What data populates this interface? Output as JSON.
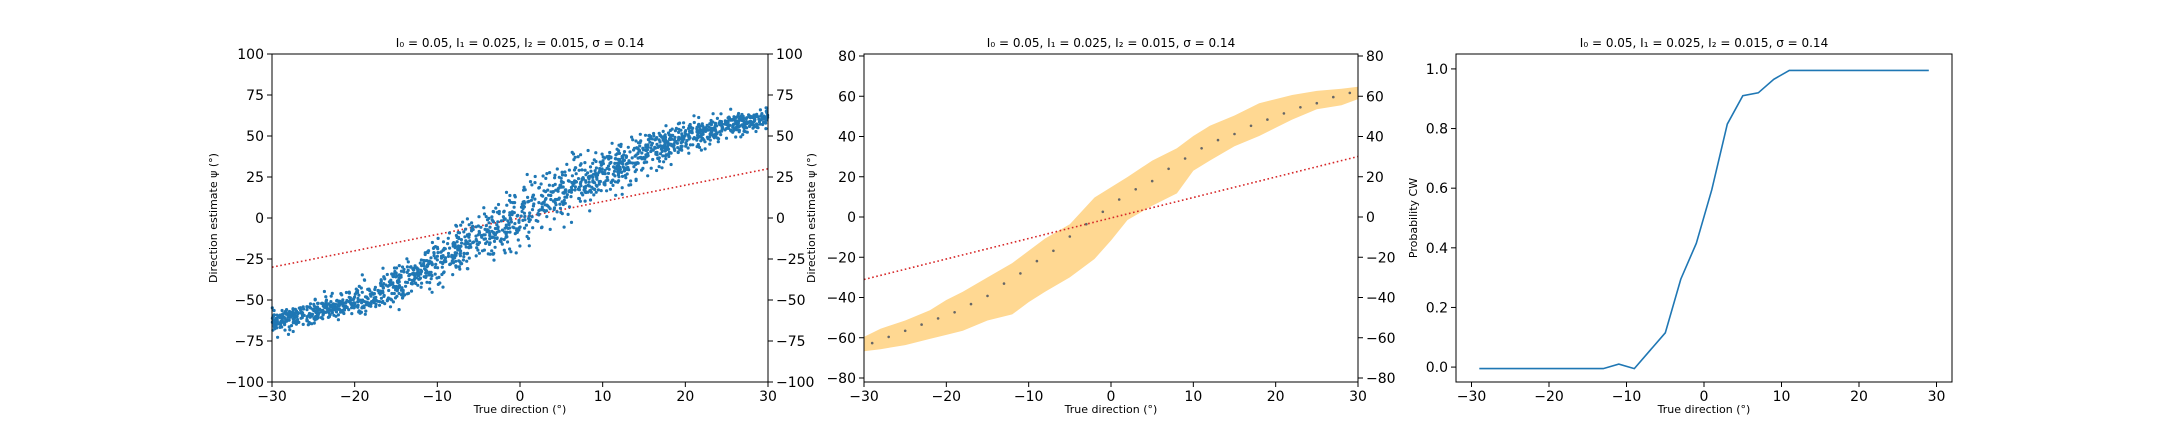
{
  "chart_data": [
    {
      "type": "scatter",
      "title": "I₀ = 0.05, I₁ = 0.025, I₂ = 0.015, σ = 0.14",
      "xlabel": "True direction (°)",
      "ylabel": "Direction estimate ψ (°)",
      "xlim": [
        -30,
        30
      ],
      "ylim": [
        -100,
        100
      ],
      "xticks": [
        "−30",
        "−20",
        "−10",
        "0",
        "10",
        "20",
        "30"
      ],
      "yticks": [
        "−100",
        "−75",
        "−50",
        "−25",
        "0",
        "25",
        "50",
        "75",
        "100"
      ],
      "yticks_right": [
        "−100",
        "−75",
        "−50",
        "−25",
        "0",
        "25",
        "50",
        "75",
        "100"
      ],
      "grid": false,
      "colors": {
        "points": "#1f77b4",
        "reference_line": "#d62728"
      },
      "reference_line": {
        "style": "dotted",
        "points": [
          [
            -30,
            -30
          ],
          [
            30,
            30
          ]
        ]
      },
      "point_cloud": {
        "x_range": [
          -30,
          30
        ],
        "count": 1800,
        "mean_curve_x": [
          -30,
          -28,
          -25,
          -22,
          -20,
          -18,
          -15,
          -12,
          -10,
          -8,
          -5,
          -2,
          0,
          2,
          5,
          8,
          10,
          12,
          15,
          18,
          20,
          22,
          25,
          28,
          30
        ],
        "mean_curve_y": [
          -63,
          -61,
          -58,
          -54,
          -51,
          -48,
          -42,
          -34,
          -27,
          -22,
          -13,
          -5,
          2,
          8,
          16,
          24,
          28,
          32,
          39,
          45,
          49,
          52,
          56,
          59,
          61
        ],
        "spread_sd": [
          3,
          3,
          3.5,
          4,
          4.5,
          5,
          6,
          6,
          7,
          7,
          8,
          8.5,
          9,
          8.5,
          8,
          7,
          7,
          6.5,
          6,
          5,
          4.5,
          4,
          3.5,
          3,
          3
        ]
      }
    },
    {
      "type": "area",
      "title": "I₀ = 0.05, I₁ = 0.025, I₂ = 0.015, σ = 0.14",
      "xlabel": "True direction (°)",
      "ylabel": "Direction estimate ψ (°)",
      "xlim": [
        -30,
        30
      ],
      "ylim": [
        -80,
        80
      ],
      "xticks": [
        "−30",
        "−20",
        "−10",
        "0",
        "10",
        "20",
        "30"
      ],
      "yticks": [
        "−80",
        "−60",
        "−40",
        "−20",
        "0",
        "20",
        "40",
        "60",
        "80"
      ],
      "yticks_right": [
        "−80",
        "−60",
        "−40",
        "−20",
        "0",
        "20",
        "40",
        "60",
        "80"
      ],
      "grid": false,
      "colors": {
        "band": "#ffd892",
        "points": "#666666",
        "reference_line": "#d62728"
      },
      "reference_line": {
        "style": "dotted",
        "points": [
          [
            -30,
            -30
          ],
          [
            30,
            30
          ]
        ]
      },
      "band": {
        "x": [
          -30,
          -28,
          -25,
          -22,
          -20,
          -18,
          -15,
          -12,
          -10,
          -8,
          -5,
          -2,
          0,
          2,
          5,
          8,
          10,
          12,
          15,
          18,
          20,
          22,
          25,
          28,
          30
        ],
        "upper": [
          -58,
          -54,
          -50,
          -45,
          -40,
          -36,
          -29,
          -22,
          -16,
          -10,
          -3,
          10,
          15,
          20,
          28,
          34,
          40,
          45,
          50,
          56,
          58,
          60,
          62,
          63,
          64
        ],
        "lower": [
          -65,
          -64,
          -62,
          -59,
          -57,
          -55,
          -50,
          -47,
          -41,
          -36,
          -29,
          -20,
          -11,
          -1,
          6,
          12,
          23,
          28,
          35,
          40,
          44,
          48,
          53,
          55,
          58
        ]
      },
      "points": {
        "x": [
          -29,
          -27,
          -25,
          -23,
          -21,
          -19,
          -17,
          -15,
          -13,
          -11,
          -9,
          -7,
          -5,
          -3,
          -1,
          1,
          3,
          5,
          7,
          9,
          11,
          13,
          15,
          17,
          19,
          21,
          23,
          25,
          27,
          29
        ],
        "y": [
          -61,
          -58,
          -55,
          -52,
          -49,
          -46,
          -42,
          -38,
          -32,
          -27,
          -21,
          -16,
          -9,
          -3,
          3,
          9,
          14,
          18,
          24,
          29,
          34,
          38,
          41,
          45,
          48,
          51,
          54,
          56,
          59,
          61
        ]
      }
    },
    {
      "type": "line",
      "title": "I₀ = 0.05, I₁ = 0.025, I₂ = 0.015, σ = 0.14",
      "xlabel": "True direction (°)",
      "ylabel": "Probability CW",
      "xlim": [
        -32,
        32
      ],
      "ylim": [
        -0.045,
        1.055
      ],
      "xticks": [
        "−30",
        "−20",
        "−10",
        "0",
        "10",
        "20",
        "30"
      ],
      "yticks": [
        "0.0",
        "0.2",
        "0.4",
        "0.6",
        "0.8",
        "1.0"
      ],
      "grid": false,
      "colors": {
        "line": "#1f77b4"
      },
      "x": [
        -29,
        -27,
        -25,
        -23,
        -21,
        -19,
        -17,
        -15,
        -13,
        -11,
        -9,
        -7,
        -5,
        -3,
        -1,
        1,
        3,
        5,
        7,
        9,
        11,
        13,
        15,
        17,
        19,
        21,
        23,
        25,
        27,
        29
      ],
      "y": [
        0,
        0,
        0,
        0,
        0,
        0,
        0,
        0,
        0,
        0.015,
        0,
        0.06,
        0.12,
        0.3,
        0.42,
        0.6,
        0.82,
        0.915,
        0.925,
        0.97,
        1,
        1,
        1,
        1,
        1,
        1,
        1,
        1,
        1,
        1
      ]
    }
  ]
}
